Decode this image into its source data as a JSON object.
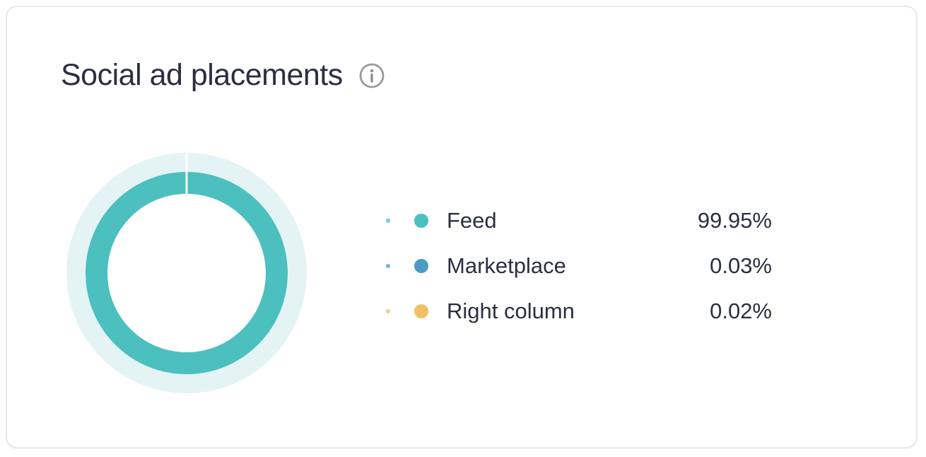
{
  "card": {
    "title": "Social ad placements"
  },
  "icons": {
    "title_info": "info-icon"
  },
  "colors": {
    "text": "#2b2f40",
    "card_border": "#e7e8ed",
    "background": "#ffffff",
    "info_icon_gray": "#97999f"
  },
  "chart_data": {
    "type": "pie",
    "subtype": "donut",
    "title": "Social ad placements",
    "categories": [
      "Feed",
      "Marketplace",
      "Right column"
    ],
    "values": [
      99.95,
      0.03,
      0.02
    ],
    "series": [
      {
        "label": "Feed",
        "value": 99.95,
        "display": "99.95%",
        "color": "#4cbfbf"
      },
      {
        "label": "Marketplace",
        "value": 0.03,
        "display": "0.03%",
        "color": "#4a9dc0"
      },
      {
        "label": "Right column",
        "value": 0.02,
        "display": "0.02%",
        "color": "#efbf67"
      }
    ],
    "legend_position": "right",
    "donut_style": {
      "halo_color": "#e4f4f5",
      "hole_color": "#ffffff",
      "divider_color": "#ffffff",
      "halo_radius": 170,
      "ring_outer_radius": 143,
      "ring_inner_radius": 112,
      "start_angle_deg": 0
    }
  }
}
